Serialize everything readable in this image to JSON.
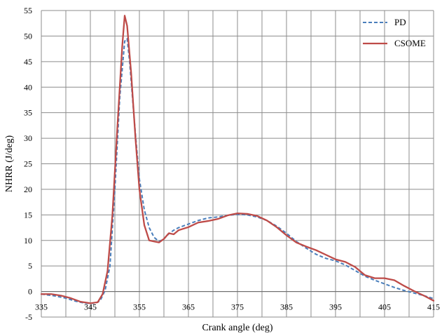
{
  "chart_data": {
    "type": "line",
    "xlabel": "Crank angle (deg)",
    "ylabel": "NHRR (J/deg)",
    "xlim": [
      335,
      415
    ],
    "ylim": [
      -5,
      55
    ],
    "x_ticks": [
      335,
      345,
      355,
      365,
      375,
      385,
      395,
      405,
      415
    ],
    "y_ticks": [
      -5,
      0,
      5,
      10,
      15,
      20,
      25,
      30,
      35,
      40,
      45,
      50,
      55
    ],
    "x_grid_step": 5,
    "grid": true,
    "legend_position": "top-right",
    "series": [
      {
        "name": "PD",
        "color": "#4a7ebb",
        "style": "dashed",
        "points": [
          [
            335,
            -0.5
          ],
          [
            338,
            -0.9
          ],
          [
            340,
            -1.3
          ],
          [
            342,
            -1.9
          ],
          [
            344,
            -2.3
          ],
          [
            346,
            -2.3
          ],
          [
            347,
            -1.8
          ],
          [
            348,
            0.2
          ],
          [
            349,
            5.0
          ],
          [
            350,
            20.0
          ],
          [
            351,
            38.0
          ],
          [
            352,
            49.0
          ],
          [
            352.5,
            49.5
          ],
          [
            353,
            45.0
          ],
          [
            354,
            33.0
          ],
          [
            355,
            22.0
          ],
          [
            356,
            16.0
          ],
          [
            357,
            12.5
          ],
          [
            358,
            10.6
          ],
          [
            359,
            9.8
          ],
          [
            360,
            10.3
          ],
          [
            361,
            11.3
          ],
          [
            362,
            12.0
          ],
          [
            363,
            12.5
          ],
          [
            365,
            13.2
          ],
          [
            367,
            13.9
          ],
          [
            369,
            14.4
          ],
          [
            371,
            14.6
          ],
          [
            373,
            14.9
          ],
          [
            375,
            15.1
          ],
          [
            377,
            15.0
          ],
          [
            379,
            14.6
          ],
          [
            381,
            13.9
          ],
          [
            383,
            12.8
          ],
          [
            385,
            11.4
          ],
          [
            387,
            9.8
          ],
          [
            389,
            8.5
          ],
          [
            391,
            7.3
          ],
          [
            393,
            6.5
          ],
          [
            395,
            6.0
          ],
          [
            397,
            5.2
          ],
          [
            399,
            4.1
          ],
          [
            401,
            3.0
          ],
          [
            403,
            2.2
          ],
          [
            405,
            1.5
          ],
          [
            407,
            0.8
          ],
          [
            409,
            0.2
          ],
          [
            411,
            -0.3
          ],
          [
            413,
            -0.8
          ],
          [
            415,
            -1.4
          ]
        ]
      },
      {
        "name": "CSOME",
        "color": "#be4b48",
        "style": "solid",
        "points": [
          [
            335,
            -0.5
          ],
          [
            337,
            -0.5
          ],
          [
            339,
            -0.8
          ],
          [
            341,
            -1.3
          ],
          [
            343,
            -2.0
          ],
          [
            345,
            -2.3
          ],
          [
            346.5,
            -2.1
          ],
          [
            347.5,
            -0.5
          ],
          [
            348.5,
            4.0
          ],
          [
            349.5,
            15.0
          ],
          [
            350.5,
            32.0
          ],
          [
            351.5,
            48.0
          ],
          [
            352,
            54.0
          ],
          [
            352.5,
            52.0
          ],
          [
            353.3,
            43.0
          ],
          [
            354.2,
            30.0
          ],
          [
            355,
            20.0
          ],
          [
            356,
            13.0
          ],
          [
            357,
            10.0
          ],
          [
            358,
            9.8
          ],
          [
            359,
            9.6
          ],
          [
            360,
            10.3
          ],
          [
            361,
            11.4
          ],
          [
            362,
            11.2
          ],
          [
            363,
            12.0
          ],
          [
            365,
            12.6
          ],
          [
            367,
            13.5
          ],
          [
            369,
            13.8
          ],
          [
            371,
            14.2
          ],
          [
            373,
            14.9
          ],
          [
            375,
            15.3
          ],
          [
            377,
            15.2
          ],
          [
            379,
            14.8
          ],
          [
            381,
            13.9
          ],
          [
            383,
            12.6
          ],
          [
            385,
            11.0
          ],
          [
            387,
            9.6
          ],
          [
            389,
            8.8
          ],
          [
            391,
            8.1
          ],
          [
            393,
            7.2
          ],
          [
            395,
            6.3
          ],
          [
            397,
            5.8
          ],
          [
            399,
            4.8
          ],
          [
            401,
            3.2
          ],
          [
            403,
            2.6
          ],
          [
            405,
            2.6
          ],
          [
            407,
            2.2
          ],
          [
            409,
            1.1
          ],
          [
            411,
            0.1
          ],
          [
            413,
            -0.8
          ],
          [
            415,
            -1.8
          ]
        ]
      }
    ]
  }
}
